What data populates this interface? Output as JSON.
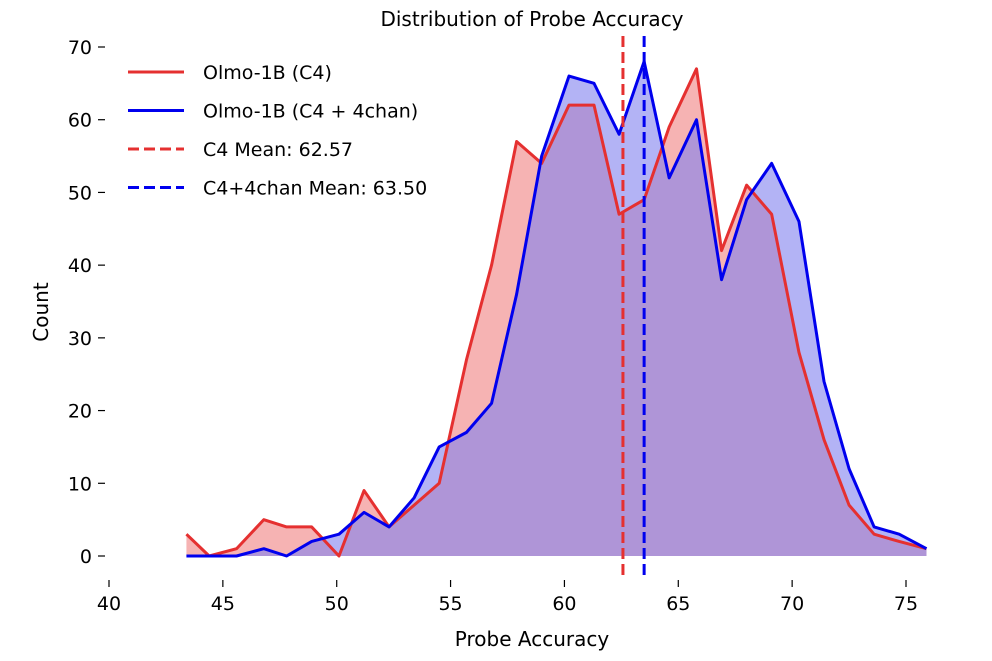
{
  "chart_data": {
    "type": "area",
    "title": "Distribution of Probe Accuracy",
    "xlabel": "Probe Accuracy",
    "ylabel": "Count",
    "xlim": [
      40,
      77
    ],
    "ylim": [
      0,
      70
    ],
    "xticks": [
      "40",
      "45",
      "50",
      "55",
      "60",
      "65",
      "70",
      "75"
    ],
    "yticks": [
      "0",
      "10",
      "20",
      "30",
      "40",
      "50",
      "60",
      "70"
    ],
    "grid": false,
    "legend_position": "top-left",
    "series": [
      {
        "name": "Olmo-1B (C4)",
        "color": "#e53030",
        "fill": "#f08080",
        "x": [
          43.4,
          44.4,
          45.6,
          46.8,
          47.8,
          48.9,
          50.1,
          51.2,
          52.3,
          53.4,
          54.5,
          55.7,
          56.8,
          57.9,
          59.0,
          60.2,
          61.3,
          62.4,
          63.5,
          64.6,
          65.8,
          66.9,
          68.0,
          69.1,
          70.3,
          71.4,
          72.5,
          73.6,
          74.7,
          75.9
        ],
        "values": [
          3,
          0,
          1,
          5,
          4,
          4,
          0,
          9,
          4,
          7,
          10,
          27,
          40,
          57,
          54,
          62,
          62,
          47,
          49,
          59,
          67,
          42,
          51,
          47,
          28,
          16,
          7,
          3,
          2,
          1
        ]
      },
      {
        "name": "Olmo-1B (C4 + 4chan)",
        "color": "#0000ee",
        "fill": "#8080ee",
        "x": [
          43.4,
          44.4,
          45.6,
          46.8,
          47.8,
          48.9,
          50.1,
          51.2,
          52.3,
          53.4,
          54.5,
          55.7,
          56.8,
          57.9,
          59.0,
          60.2,
          61.3,
          62.4,
          63.5,
          64.6,
          65.8,
          66.9,
          68.0,
          69.1,
          70.3,
          71.4,
          72.5,
          73.6,
          74.7,
          75.9
        ],
        "values": [
          0,
          0,
          0,
          1,
          0,
          2,
          3,
          6,
          4,
          8,
          15,
          17,
          21,
          36,
          55,
          66,
          65,
          58,
          68,
          52,
          60,
          38,
          49,
          54,
          46,
          24,
          12,
          4,
          3,
          1
        ]
      }
    ],
    "mean_lines": [
      {
        "name": "C4 Mean: 62.57",
        "value": 62.57,
        "color": "#e53030"
      },
      {
        "name": "C4+4chan Mean: 63.50",
        "value": 63.5,
        "color": "#0000ee"
      }
    ]
  }
}
